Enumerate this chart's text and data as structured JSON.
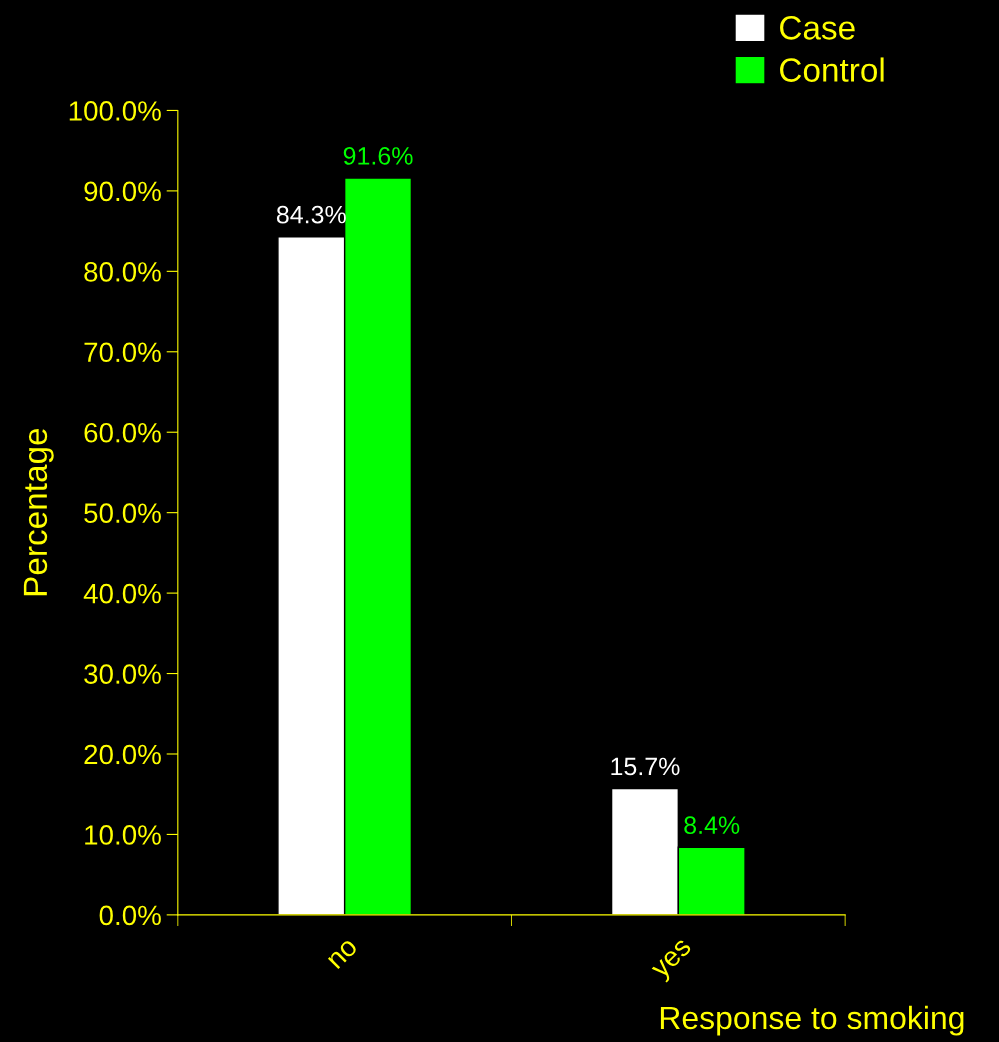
{
  "chart_data": {
    "type": "bar",
    "xlabel": "Response to smoking",
    "ylabel": "Percentage",
    "categories": [
      "no",
      "yes"
    ],
    "series": [
      {
        "name": "Case",
        "color": "#ffffff",
        "values": [
          84.3,
          15.7
        ],
        "value_labels": [
          "84.3%",
          "15.7%"
        ]
      },
      {
        "name": "Control",
        "color": "#00ff00",
        "values": [
          91.6,
          8.4
        ],
        "value_labels": [
          "91.6%",
          "8.4%"
        ]
      }
    ],
    "ylim": [
      0,
      100
    ],
    "yticks": [
      {
        "value": 0,
        "label": "0.0%"
      },
      {
        "value": 10,
        "label": "10.0%"
      },
      {
        "value": 20,
        "label": "20.0%"
      },
      {
        "value": 30,
        "label": "30.0%"
      },
      {
        "value": 40,
        "label": "40.0%"
      },
      {
        "value": 50,
        "label": "50.0%"
      },
      {
        "value": 60,
        "label": "60.0%"
      },
      {
        "value": 70,
        "label": "70.0%"
      },
      {
        "value": 80,
        "label": "80.0%"
      },
      {
        "value": 90,
        "label": "90.0%"
      },
      {
        "value": 100,
        "label": "100.0%"
      }
    ],
    "grid": false,
    "legend": "top right"
  }
}
